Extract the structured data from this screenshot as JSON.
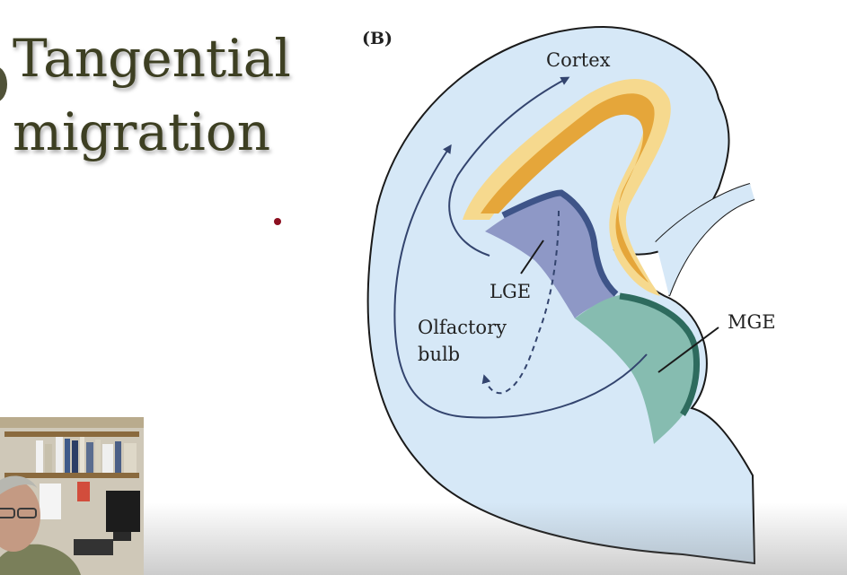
{
  "slide": {
    "title_line1": "Tangential",
    "title_line2": "migration"
  },
  "diagram": {
    "panel_label": "(B)",
    "labels": {
      "cortex": "Cortex",
      "lge": "LGE",
      "olfactory_line1": "Olfactory",
      "olfactory_line2": "bulb",
      "mge": "MGE"
    },
    "colors": {
      "ventricle_fill": "#d6e8f7",
      "outline": "#1a1a1a",
      "cortex_outer": "#f6d98e",
      "cortex_inner": "#e5a63a",
      "lge_fill": "#8e98c6",
      "lge_edge": "#3e5488",
      "mge_fill": "#86bcb0",
      "mge_edge": "#2e6b5e",
      "arrow": "#33446e",
      "title_text": "#3d3f22"
    }
  },
  "webcam": {
    "description_icon": "presenter-video-icon"
  }
}
